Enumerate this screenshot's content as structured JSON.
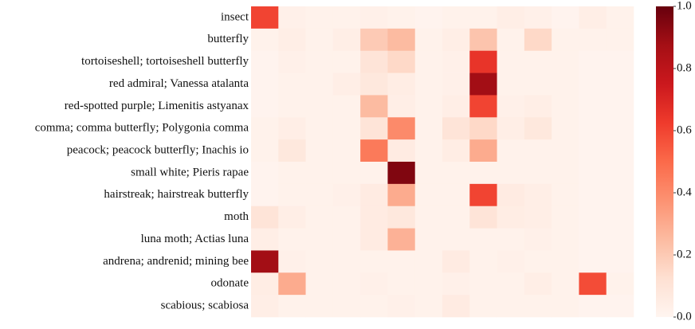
{
  "chart_data": {
    "type": "heatmap",
    "colormap": "Reds",
    "rows": [
      "insect",
      "butterfly",
      "tortoiseshell; tortoiseshell butterfly",
      "red admiral; Vanessa atalanta",
      "red-spotted purple; Limenitis astyanax",
      "comma; comma butterfly; Polygonia comma",
      "peacock; peacock butterfly; Inachis io",
      "small white; Pieris rapae",
      "hairstreak; hairstreak butterfly",
      "moth",
      "luna moth; Actias luna",
      "andrena; andrenid; mining bee",
      "odonate",
      "scabious; scabiosa"
    ],
    "values": [
      [
        0.6,
        0.03,
        0.02,
        0.02,
        0.03,
        0.02,
        0.01,
        0.02,
        0.02,
        0.04,
        0.03,
        0.01,
        0.04,
        0.02
      ],
      [
        0.02,
        0.04,
        0.02,
        0.04,
        0.2,
        0.25,
        0.02,
        0.04,
        0.22,
        0.02,
        0.15,
        0.02,
        0.02,
        0.02
      ],
      [
        0.01,
        0.03,
        0.02,
        0.02,
        0.1,
        0.15,
        0.02,
        0.03,
        0.65,
        0.02,
        0.02,
        0.02,
        0.01,
        0.01
      ],
      [
        0.01,
        0.02,
        0.02,
        0.04,
        0.08,
        0.05,
        0.02,
        0.03,
        0.88,
        0.02,
        0.02,
        0.02,
        0.01,
        0.01
      ],
      [
        0.01,
        0.02,
        0.02,
        0.02,
        0.25,
        0.04,
        0.02,
        0.04,
        0.6,
        0.03,
        0.04,
        0.02,
        0.01,
        0.01
      ],
      [
        0.02,
        0.04,
        0.02,
        0.02,
        0.1,
        0.4,
        0.02,
        0.1,
        0.15,
        0.04,
        0.08,
        0.02,
        0.01,
        0.01
      ],
      [
        0.02,
        0.08,
        0.02,
        0.02,
        0.45,
        0.06,
        0.02,
        0.05,
        0.3,
        0.02,
        0.02,
        0.02,
        0.01,
        0.01
      ],
      [
        0.01,
        0.02,
        0.02,
        0.02,
        0.02,
        0.95,
        0.02,
        0.02,
        0.02,
        0.02,
        0.02,
        0.02,
        0.01,
        0.01
      ],
      [
        0.01,
        0.02,
        0.02,
        0.03,
        0.06,
        0.3,
        0.02,
        0.02,
        0.6,
        0.06,
        0.04,
        0.02,
        0.01,
        0.01
      ],
      [
        0.1,
        0.04,
        0.02,
        0.02,
        0.06,
        0.08,
        0.02,
        0.02,
        0.1,
        0.05,
        0.04,
        0.02,
        0.01,
        0.01
      ],
      [
        0.04,
        0.02,
        0.02,
        0.02,
        0.06,
        0.28,
        0.02,
        0.02,
        0.02,
        0.02,
        0.03,
        0.02,
        0.01,
        0.01
      ],
      [
        0.88,
        0.03,
        0.02,
        0.02,
        0.02,
        0.02,
        0.02,
        0.06,
        0.02,
        0.03,
        0.02,
        0.02,
        0.01,
        0.01
      ],
      [
        0.05,
        0.3,
        0.02,
        0.02,
        0.03,
        0.02,
        0.02,
        0.03,
        0.02,
        0.02,
        0.04,
        0.02,
        0.58,
        0.02
      ],
      [
        0.04,
        0.02,
        0.02,
        0.02,
        0.02,
        0.03,
        0.02,
        0.06,
        0.02,
        0.02,
        0.02,
        0.02,
        0.01,
        0.01
      ]
    ],
    "clim": [
      0,
      1
    ],
    "cticks": [
      {
        "value": 0,
        "label": "0.0"
      },
      0.2,
      0.4,
      0.6,
      0.8,
      {
        "value": 1,
        "label": "1.0"
      }
    ]
  }
}
